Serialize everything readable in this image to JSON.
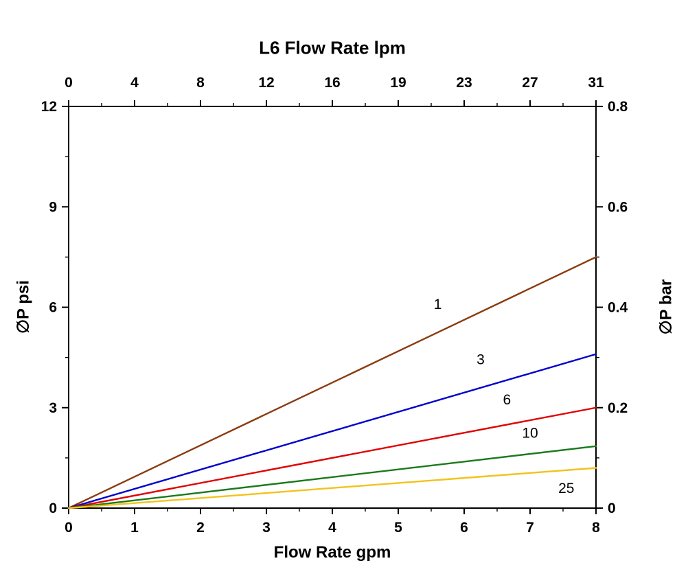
{
  "chart_data": {
    "type": "line",
    "title_top": "L6 Flow Rate lpm",
    "xlabel_bottom": "Flow Rate gpm",
    "ylabel_left": "∅P psi",
    "ylabel_right": "∅P bar",
    "xlim": [
      0,
      8
    ],
    "ylim": [
      0,
      12
    ],
    "ylim_right": [
      0,
      0.8
    ],
    "x_ticks_bottom": [
      "0",
      "1",
      "2",
      "3",
      "4",
      "5",
      "6",
      "7",
      "8"
    ],
    "x_ticks_top_labels": [
      "0",
      "4",
      "8",
      "12",
      "16",
      "19",
      "23",
      "27",
      "31"
    ],
    "y_ticks_left": [
      "0",
      "3",
      "6",
      "9",
      "12"
    ],
    "y_ticks_right": [
      "0",
      "0.2",
      "0.4",
      "0.6",
      "0.8"
    ],
    "grid": "off",
    "legend": "inline-labels",
    "series": [
      {
        "name": "1",
        "color": "#8a3b10",
        "x": [
          0,
          8
        ],
        "y": [
          0,
          7.5
        ],
        "label_pos": {
          "x": 5.6,
          "y": 5.95
        }
      },
      {
        "name": "3",
        "color": "#0000cd",
        "x": [
          0,
          8
        ],
        "y": [
          0,
          4.6
        ],
        "label_pos": {
          "x": 6.25,
          "y": 4.3
        }
      },
      {
        "name": "6",
        "color": "#e10000",
        "x": [
          0,
          8
        ],
        "y": [
          0,
          3.0
        ],
        "label_pos": {
          "x": 6.65,
          "y": 3.1
        }
      },
      {
        "name": "10",
        "color": "#1a7a1a",
        "x": [
          0,
          8
        ],
        "y": [
          0,
          1.85
        ],
        "label_pos": {
          "x": 7.0,
          "y": 2.1
        }
      },
      {
        "name": "25",
        "color": "#f2c31b",
        "x": [
          0,
          8
        ],
        "y": [
          0,
          1.2
        ],
        "label_pos": {
          "x": 7.55,
          "y": 0.45
        }
      }
    ]
  }
}
